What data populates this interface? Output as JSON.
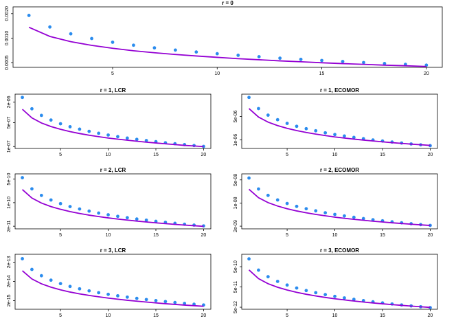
{
  "chart_data": [
    {
      "type": "line",
      "title": "r = 0",
      "log_y": true,
      "x": [
        1,
        2,
        3,
        4,
        5,
        6,
        7,
        8,
        9,
        10,
        11,
        12,
        13,
        14,
        15,
        16,
        17,
        18,
        19,
        20
      ],
      "xlim": [
        0.24,
        20.76
      ],
      "xticks": [
        5,
        10,
        15,
        20
      ],
      "ylim": [
        0.000438,
        0.00242
      ],
      "yticks": [
        {
          "value": 0.0005,
          "label": "0.0005"
        },
        {
          "value": 0.001,
          "label": "0.0010"
        },
        {
          "value": 0.002,
          "label": "0.0020"
        }
      ],
      "series": [
        {
          "mode": "points",
          "color": "#2b8cee",
          "values": [
            0.0019,
            0.00137,
            0.00113,
            0.00099,
            0.000891,
            0.000819,
            0.00076,
            0.000714,
            0.000676,
            0.000644,
            0.000616,
            0.000591,
            0.000568,
            0.000549,
            0.000532,
            0.000517,
            0.000502,
            0.000488,
            0.000477,
            0.000466
          ]
        },
        {
          "mode": "line",
          "color": "#9400d3",
          "values": [
            0.00136,
            0.00105,
            0.000906,
            0.000815,
            0.000751,
            0.0007,
            0.000662,
            0.00063,
            0.000604,
            0.000581,
            0.00056,
            0.000543,
            0.000526,
            0.000513,
            0.000499,
            0.000487,
            0.000477,
            0.000466,
            0.000458,
            0.000449
          ]
        }
      ]
    },
    {
      "type": "line",
      "title": "r = 1, LCR",
      "log_y": true,
      "x": [
        1,
        2,
        3,
        4,
        5,
        6,
        7,
        8,
        9,
        10,
        11,
        12,
        13,
        14,
        15,
        16,
        17,
        18,
        19,
        20
      ],
      "xlim": [
        0.24,
        20.76
      ],
      "xticks": [
        5,
        10,
        15,
        20
      ],
      "ylim": [
        8.8e-08,
        3.4e-06
      ],
      "yticks": [
        {
          "value": 1e-07,
          "label": "1e-07"
        },
        {
          "value": 5e-07,
          "label": "5e-07"
        },
        {
          "value": 2e-06,
          "label": "2e-06"
        }
      ],
      "series": [
        {
          "mode": "points",
          "color": "#2b8cee",
          "values": [
            2.73e-06,
            1.27e-06,
            8.14e-07,
            5.95e-07,
            4.64e-07,
            3.79e-07,
            3.22e-07,
            2.78e-07,
            2.44e-07,
            2.17e-07,
            1.95e-07,
            1.77e-07,
            1.62e-07,
            1.5e-07,
            1.39e-07,
            1.29e-07,
            1.21e-07,
            1.14e-07,
            1.07e-07,
            1.01e-07
          ]
        },
        {
          "mode": "line",
          "color": "#9400d3",
          "values": [
            1.23e-06,
            6.88e-07,
            4.88e-07,
            3.84e-07,
            3.19e-07,
            2.73e-07,
            2.4e-07,
            2.14e-07,
            1.94e-07,
            1.77e-07,
            1.64e-07,
            1.53e-07,
            1.43e-07,
            1.34e-07,
            1.27e-07,
            1.2e-07,
            1.14e-07,
            1.08e-07,
            1.04e-07,
            9.93e-08
          ]
        }
      ]
    },
    {
      "type": "line",
      "title": "r = 1, ECOMOR",
      "log_y": true,
      "x": [
        1,
        2,
        3,
        4,
        5,
        6,
        7,
        8,
        9,
        10,
        11,
        12,
        13,
        14,
        15,
        16,
        17,
        18,
        19,
        20
      ],
      "xlim": [
        0.24,
        20.76
      ],
      "xticks": [
        5,
        10,
        15,
        20
      ],
      "ylim": [
        5.6e-07,
        2.29e-05
      ],
      "yticks": [
        {
          "value": 1e-06,
          "label": "1e-06"
        },
        {
          "value": 5e-06,
          "label": "5e-06"
        }
      ],
      "series": [
        {
          "mode": "points",
          "color": "#2b8cee",
          "values": [
            1.83e-05,
            8.55e-06,
            5.45e-06,
            3.99e-06,
            3.11e-06,
            2.54e-06,
            2.16e-06,
            1.87e-06,
            1.63e-06,
            1.45e-06,
            1.31e-06,
            1.19e-06,
            1.09e-06,
            1e-06,
            9.3e-07,
            8.67e-07,
            8.11e-07,
            7.61e-07,
            7.17e-07,
            6.77e-07
          ]
        },
        {
          "mode": "line",
          "color": "#9400d3",
          "values": [
            8.55e-06,
            4.78e-06,
            3.39e-06,
            2.67e-06,
            2.21e-06,
            1.9e-06,
            1.67e-06,
            1.49e-06,
            1.35e-06,
            1.23e-06,
            1.14e-06,
            1.06e-06,
            9.92e-07,
            9.32e-07,
            8.81e-07,
            8.33e-07,
            7.92e-07,
            7.54e-07,
            7.21e-07,
            6.9e-07
          ]
        }
      ]
    },
    {
      "type": "line",
      "title": "r = 2, LCR",
      "log_y": true,
      "x": [
        1,
        2,
        3,
        4,
        5,
        6,
        7,
        8,
        9,
        10,
        11,
        12,
        13,
        14,
        15,
        16,
        17,
        18,
        19,
        20
      ],
      "xlim": [
        0.24,
        20.76
      ],
      "xticks": [
        5,
        10,
        15,
        20
      ],
      "ylim": [
        1.67e-11,
        7.15e-10
      ],
      "yticks": [
        {
          "value": 2e-11,
          "label": "2e-11"
        },
        {
          "value": 1e-10,
          "label": "1e-10"
        },
        {
          "value": 5e-10,
          "label": "5e-10"
        }
      ],
      "series": [
        {
          "mode": "points",
          "color": "#2b8cee",
          "values": [
            5.5e-10,
            2.57e-10,
            1.64e-10,
            1.2e-10,
            9.35e-11,
            7.65e-11,
            6.49e-11,
            5.61e-11,
            4.91e-11,
            4.37e-11,
            3.93e-11,
            3.58e-11,
            3.27e-11,
            3.02e-11,
            2.79e-11,
            2.61e-11,
            2.44e-11,
            2.29e-11,
            2.16e-11,
            2.04e-11
          ]
        },
        {
          "mode": "line",
          "color": "#9400d3",
          "values": [
            2.45e-10,
            1.37e-10,
            9.73e-11,
            7.64e-11,
            6.35e-11,
            5.44e-11,
            4.78e-11,
            4.26e-11,
            3.87e-11,
            3.53e-11,
            3.26e-11,
            3.04e-11,
            2.84e-11,
            2.67e-11,
            2.52e-11,
            2.39e-11,
            2.27e-11,
            2.16e-11,
            2.07e-11,
            1.98e-11
          ]
        }
      ]
    },
    {
      "type": "line",
      "title": "r = 2, ECOMOR",
      "log_y": true,
      "x": [
        1,
        2,
        3,
        4,
        5,
        6,
        7,
        8,
        9,
        10,
        11,
        12,
        13,
        14,
        15,
        16,
        17,
        18,
        19,
        20
      ],
      "xlim": [
        0.24,
        20.76
      ],
      "xticks": [
        5,
        10,
        15,
        20
      ],
      "ylim": [
        1.66e-09,
        7.6e-08
      ],
      "yticks": [
        {
          "value": 2e-09,
          "label": "2e-09"
        },
        {
          "value": 1e-08,
          "label": "1e-08"
        },
        {
          "value": 5e-08,
          "label": "5e-08"
        }
      ],
      "series": [
        {
          "mode": "points",
          "color": "#2b8cee",
          "values": [
            5.7e-08,
            2.66e-08,
            1.7e-08,
            1.24e-08,
            9.69e-09,
            7.92e-09,
            6.73e-09,
            5.81e-09,
            5.08e-09,
            4.53e-09,
            4.08e-09,
            3.71e-09,
            3.39e-09,
            3.13e-09,
            2.9e-09,
            2.7e-09,
            2.53e-09,
            2.37e-09,
            2.23e-09,
            2.11e-09
          ]
        },
        {
          "mode": "line",
          "color": "#9400d3",
          "values": [
            2.6e-08,
            1.45e-08,
            1.03e-08,
            8.11e-09,
            6.73e-09,
            5.77e-09,
            5.07e-09,
            4.52e-09,
            4.11e-09,
            3.74e-09,
            3.46e-09,
            3.22e-09,
            3.02e-09,
            2.83e-09,
            2.68e-09,
            2.53e-09,
            2.41e-09,
            2.29e-09,
            2.19e-09,
            2.1e-09
          ]
        }
      ]
    },
    {
      "type": "line",
      "title": "r = 3, LCR",
      "log_y": true,
      "x": [
        1,
        2,
        3,
        4,
        5,
        6,
        7,
        8,
        9,
        10,
        11,
        12,
        13,
        14,
        15,
        16,
        17,
        18,
        19,
        20
      ],
      "xlim": [
        0.24,
        20.76
      ],
      "xticks": [
        5,
        10,
        15,
        20
      ],
      "ylim": [
        7.1e-16,
        5.1e-13
      ],
      "yticks": [
        {
          "value": 2e-15,
          "label": "2e-15"
        },
        {
          "value": 2e-14,
          "label": "2e-14"
        },
        {
          "value": 2e-13,
          "label": "2e-13"
        }
      ],
      "series": [
        {
          "mode": "points",
          "color": "#2b8cee",
          "values": [
            3e-13,
            8.31e-14,
            3.93e-14,
            2.31e-14,
            1.53e-14,
            1.09e-14,
            8.19e-15,
            6.42e-15,
            5.16e-15,
            4.23e-15,
            3.54e-15,
            3.03e-15,
            2.61e-15,
            2.27e-15,
            2e-15,
            1.78e-15,
            1.59e-15,
            1.43e-15,
            1.3e-15,
            1.18e-15
          ]
        },
        {
          "mode": "line",
          "color": "#9400d3",
          "values": [
            7.1e-14,
            2.66e-14,
            1.49e-14,
            9.94e-15,
            7.24e-15,
            5.57e-15,
            4.48e-15,
            3.71e-15,
            3.14e-15,
            2.7e-15,
            2.36e-15,
            2.08e-15,
            1.86e-15,
            1.68e-15,
            1.52e-15,
            1.38e-15,
            1.27e-15,
            1.17e-15,
            1.09e-15,
            1.01e-15
          ]
        }
      ]
    },
    {
      "type": "line",
      "title": "r = 3, ECOMOR",
      "log_y": true,
      "x": [
        1,
        2,
        3,
        4,
        5,
        6,
        7,
        8,
        9,
        10,
        11,
        12,
        13,
        14,
        15,
        16,
        17,
        18,
        19,
        20
      ],
      "xlim": [
        0.24,
        20.76
      ],
      "xticks": [
        5,
        10,
        15,
        20
      ],
      "ylim": [
        3.97e-12,
        2.05e-09
      ],
      "yticks": [
        {
          "value": 5e-12,
          "label": "5e-12"
        },
        {
          "value": 5e-11,
          "label": "5e-11"
        },
        {
          "value": 5e-10,
          "label": "5e-10"
        }
      ],
      "series": [
        {
          "mode": "points",
          "color": "#2b8cee",
          "values": [
            1.22e-09,
            3.38e-10,
            1.6e-10,
            9.39e-11,
            6.21e-11,
            4.43e-11,
            3.33e-11,
            2.61e-11,
            2.1e-11,
            1.72e-11,
            1.44e-11,
            1.23e-11,
            1.06e-11,
            9.25e-12,
            8.14e-12,
            7.22e-12,
            6.47e-12,
            5.81e-12,
            5.27e-12,
            4.78e-12
          ]
        },
        {
          "mode": "line",
          "color": "#9400d3",
          "values": [
            3.45e-10,
            1.29e-10,
            7.25e-11,
            4.83e-11,
            3.52e-11,
            2.71e-11,
            2.18e-11,
            1.8e-11,
            1.52e-11,
            1.31e-11,
            1.15e-11,
            1.01e-11,
            9.04e-12,
            8.14e-12,
            7.38e-12,
            6.73e-12,
            6.18e-12,
            5.69e-12,
            5.28e-12,
            4.9e-12
          ]
        }
      ]
    }
  ]
}
